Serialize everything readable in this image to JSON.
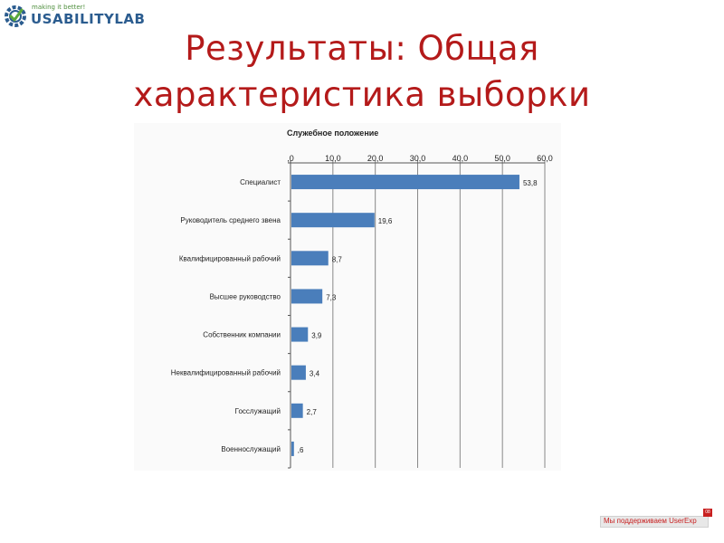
{
  "logo": {
    "tagline": "making it better!",
    "brand": "USABILITYLAB",
    "icon": "gear-icon"
  },
  "slide": {
    "title_line1": "Результаты: Общая",
    "title_line2": "характеристика выборки",
    "title_color": "#b41a1a"
  },
  "chart_data": {
    "type": "bar",
    "orientation": "horizontal",
    "title": "Служебное положение",
    "categories": [
      "Специалист",
      "Руководитель среднего звена",
      "Квалифицированный  рабочий",
      "Высшее руководство",
      "Собственник компании",
      "Неквалифицированный  рабочий",
      "Госслужащий",
      "Военнослужащий"
    ],
    "values": [
      53.8,
      19.6,
      8.7,
      7.3,
      3.9,
      3.4,
      2.7,
      0.6
    ],
    "value_labels": [
      "53,8",
      "19,6",
      "8,7",
      "7,3",
      "3,9",
      "3,4",
      "2,7",
      ",6"
    ],
    "xlim": [
      0,
      60
    ],
    "x_ticks": [
      ",0",
      "10,0",
      "20,0",
      "30,0",
      "40,0",
      "50,0",
      "60,0"
    ],
    "x_tick_values": [
      0,
      10,
      20,
      30,
      40,
      50,
      60
    ],
    "axis_position": "top",
    "grid": true,
    "bar_color": "#4a7ebb"
  },
  "footer": {
    "text": "Мы поддерживаем UserExp",
    "corner": "08"
  }
}
